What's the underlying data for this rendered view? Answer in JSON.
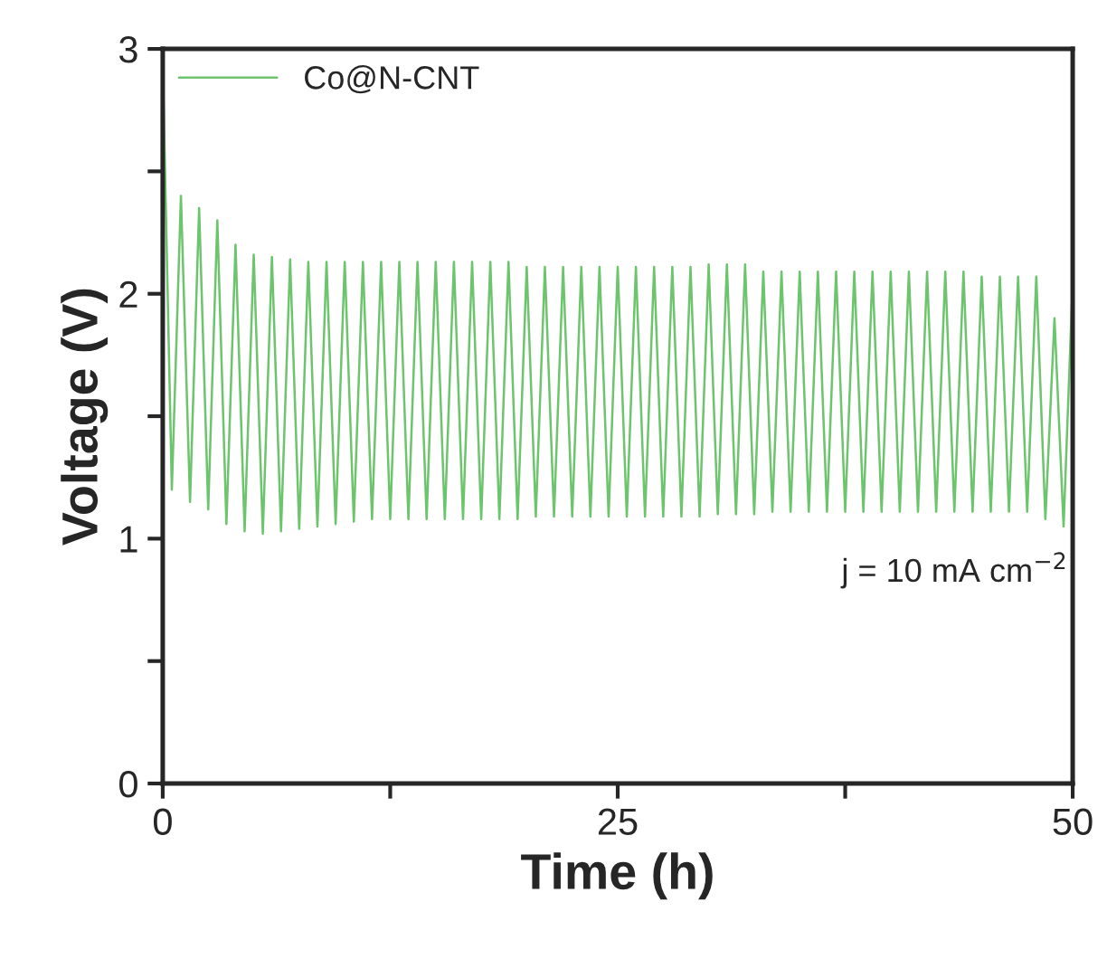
{
  "chart_data": {
    "type": "line",
    "xlabel": "Time (h)",
    "ylabel": "Voltage (V)",
    "xlim": [
      0,
      50
    ],
    "ylim": [
      0,
      3
    ],
    "xticks": [
      0,
      {
        "value": 12.5,
        "label": null
      },
      25,
      {
        "value": 37.5,
        "label": null
      },
      50
    ],
    "yticks": [
      0,
      {
        "value": 0.5,
        "label": null
      },
      1,
      {
        "value": 1.5,
        "label": null
      },
      2,
      {
        "value": 2.5,
        "label": null
      },
      3
    ],
    "legend": "top left",
    "grid": false,
    "marker": "none",
    "line_style": "solid",
    "annotations": [
      {
        "text": "j = 10 mA cm$^{−2}$"
      }
    ],
    "x": [
      0,
      0.5,
      1,
      1.5,
      2,
      2.5,
      3,
      3.5,
      4,
      4.5,
      5,
      5.5,
      6,
      6.5,
      7,
      7.5,
      8,
      8.5,
      9,
      9.5,
      10,
      10.5,
      11,
      11.5,
      12,
      12.5,
      13,
      13.5,
      14,
      14.5,
      15,
      15.5,
      16,
      16.5,
      17,
      17.5,
      18,
      18.5,
      19,
      19.5,
      20,
      20.5,
      21,
      21.5,
      22,
      22.5,
      23,
      23.5,
      24,
      24.5,
      25,
      25.5,
      26,
      26.5,
      27,
      27.5,
      28,
      28.5,
      29,
      29.5,
      30,
      30.5,
      31,
      31.5,
      32,
      32.5,
      33,
      33.5,
      34,
      34.5,
      35,
      35.5,
      36,
      36.5,
      37,
      37.5,
      38,
      38.5,
      39,
      39.5,
      40,
      40.5,
      41,
      41.5,
      42,
      42.5,
      43,
      43.5,
      44,
      44.5,
      45,
      45.5,
      46,
      46.5,
      47,
      47.5,
      48,
      48.5,
      49,
      49.5,
      50
    ],
    "series": [
      {
        "name": "Co@N-CNT",
        "color": "#6cc46c",
        "values": [
          2.95,
          1.2,
          2.4,
          1.15,
          2.35,
          1.12,
          2.3,
          1.06,
          2.2,
          1.03,
          2.16,
          1.02,
          2.15,
          1.03,
          2.14,
          1.04,
          2.13,
          1.05,
          2.13,
          1.06,
          2.13,
          1.07,
          2.13,
          1.08,
          2.13,
          1.08,
          2.13,
          1.08,
          2.13,
          1.08,
          2.13,
          1.08,
          2.13,
          1.08,
          2.13,
          1.08,
          2.13,
          1.08,
          2.13,
          1.08,
          2.11,
          1.09,
          2.11,
          1.09,
          2.11,
          1.09,
          2.11,
          1.09,
          2.11,
          1.09,
          2.11,
          1.09,
          2.11,
          1.09,
          2.11,
          1.09,
          2.11,
          1.09,
          2.11,
          1.09,
          2.12,
          1.1,
          2.12,
          1.1,
          2.12,
          1.1,
          2.09,
          1.11,
          2.09,
          1.11,
          2.09,
          1.11,
          2.09,
          1.11,
          2.09,
          1.11,
          2.09,
          1.11,
          2.09,
          1.11,
          2.09,
          1.11,
          2.09,
          1.11,
          2.09,
          1.11,
          2.09,
          1.11,
          2.09,
          1.11,
          2.07,
          1.11,
          2.07,
          1.11,
          2.07,
          1.11,
          2.07,
          1.08,
          1.9,
          1.05,
          2.05
        ]
      }
    ]
  }
}
